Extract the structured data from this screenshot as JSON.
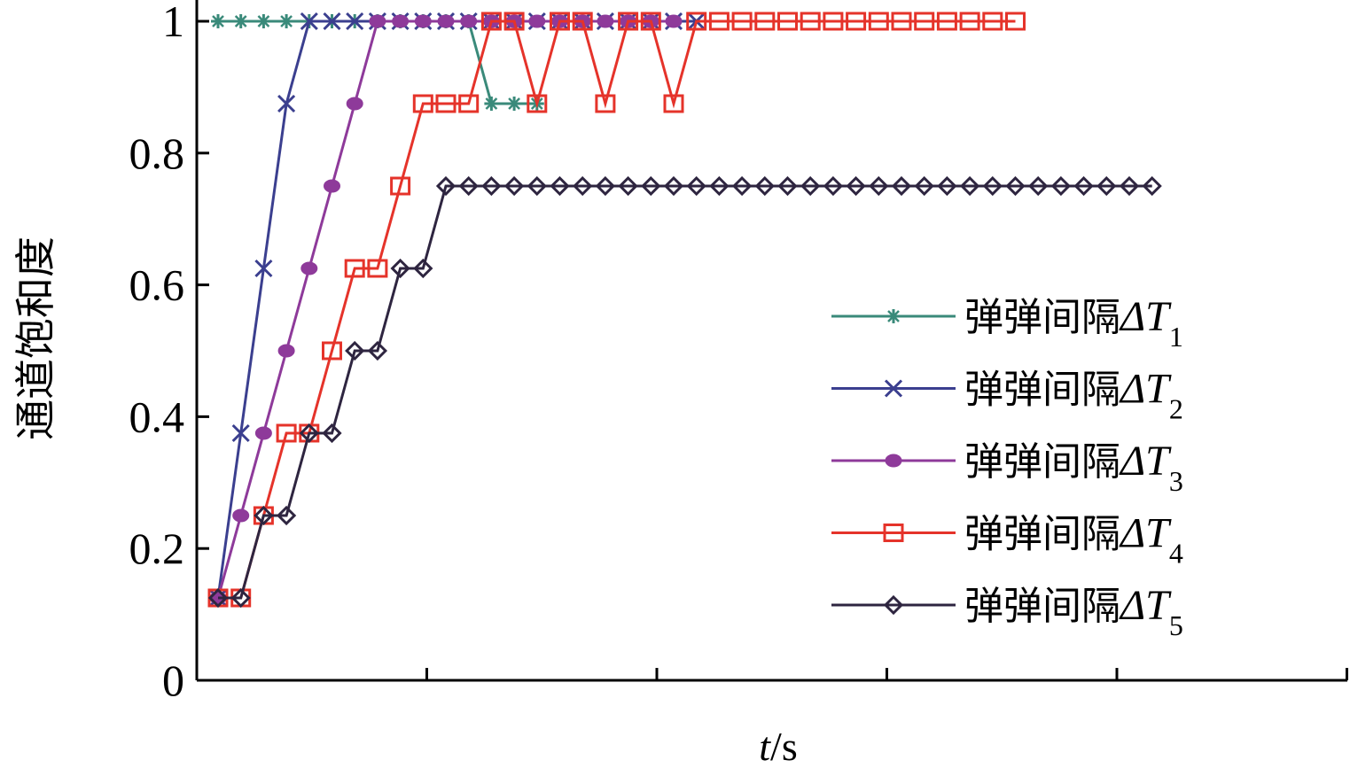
{
  "chart_data": {
    "type": "line",
    "title": "",
    "xlabel_italic": "t",
    "xlabel_unit": "/s",
    "ylabel": "通道饱和度",
    "ylim": [
      0,
      1
    ],
    "y_ticks": [
      {
        "value": 0,
        "label": "0"
      },
      {
        "value": 0.2,
        "label": "0.2"
      },
      {
        "value": 0.4,
        "label": "0.4"
      },
      {
        "value": 0.6,
        "label": "0.6"
      },
      {
        "value": 0.8,
        "label": "0.8"
      },
      {
        "value": 1,
        "label": "1"
      }
    ],
    "x_tick_count": 5,
    "x_tick_labels_shown": false,
    "grid": false,
    "legend_position": "right",
    "series": [
      {
        "name": "弹弹间隔ΔT1",
        "label_text": "弹弹间隔",
        "label_symbol": "ΔT",
        "label_sub": "1",
        "color": "#3a8a7a",
        "marker": "star",
        "values": [
          1,
          1,
          1,
          1,
          1,
          1,
          1,
          1,
          1,
          1,
          1,
          1,
          0.875,
          0.875,
          0.875
        ]
      },
      {
        "name": "弹弹间隔ΔT2",
        "label_text": "弹弹间隔",
        "label_symbol": "ΔT",
        "label_sub": "2",
        "color": "#3b3f8f",
        "marker": "x",
        "values": [
          0.125,
          0.375,
          0.625,
          0.875,
          1,
          1,
          1,
          1,
          1,
          1,
          1,
          1,
          1,
          1,
          1,
          1,
          1,
          1,
          1,
          1,
          1,
          1
        ]
      },
      {
        "name": "弹弹间隔ΔT3",
        "label_text": "弹弹间隔",
        "label_symbol": "ΔT",
        "label_sub": "3",
        "color": "#8e3a9a",
        "marker": "dot",
        "values": [
          0.125,
          0.25,
          0.375,
          0.5,
          0.625,
          0.75,
          0.875,
          1,
          1,
          1,
          1,
          1,
          1,
          1,
          1,
          1,
          1,
          1,
          1,
          1,
          1
        ]
      },
      {
        "name": "弹弹间隔ΔT4",
        "label_text": "弹弹间隔",
        "label_symbol": "ΔT",
        "label_sub": "4",
        "color": "#e5332a",
        "marker": "square",
        "values": [
          0.125,
          0.125,
          0.25,
          0.375,
          0.375,
          0.5,
          0.625,
          0.625,
          0.75,
          0.875,
          0.875,
          0.875,
          1,
          1,
          0.875,
          1,
          1,
          0.875,
          1,
          1,
          0.875,
          1,
          1,
          1,
          1,
          1,
          1,
          1,
          1,
          1,
          1,
          1,
          1,
          1,
          1,
          1
        ]
      },
      {
        "name": "弹弹间隔ΔT5",
        "label_text": "弹弹间隔",
        "label_symbol": "ΔT",
        "label_sub": "5",
        "color": "#2e2540",
        "marker": "diamond",
        "values": [
          0.125,
          0.125,
          0.25,
          0.25,
          0.375,
          0.375,
          0.5,
          0.5,
          0.625,
          0.625,
          0.75,
          0.75,
          0.75,
          0.75,
          0.75,
          0.75,
          0.75,
          0.75,
          0.75,
          0.75,
          0.75,
          0.75,
          0.75,
          0.75,
          0.75,
          0.75,
          0.75,
          0.75,
          0.75,
          0.75,
          0.75,
          0.75,
          0.75,
          0.75,
          0.75,
          0.75,
          0.75,
          0.75,
          0.75,
          0.75,
          0.75,
          0.75
        ]
      }
    ]
  }
}
